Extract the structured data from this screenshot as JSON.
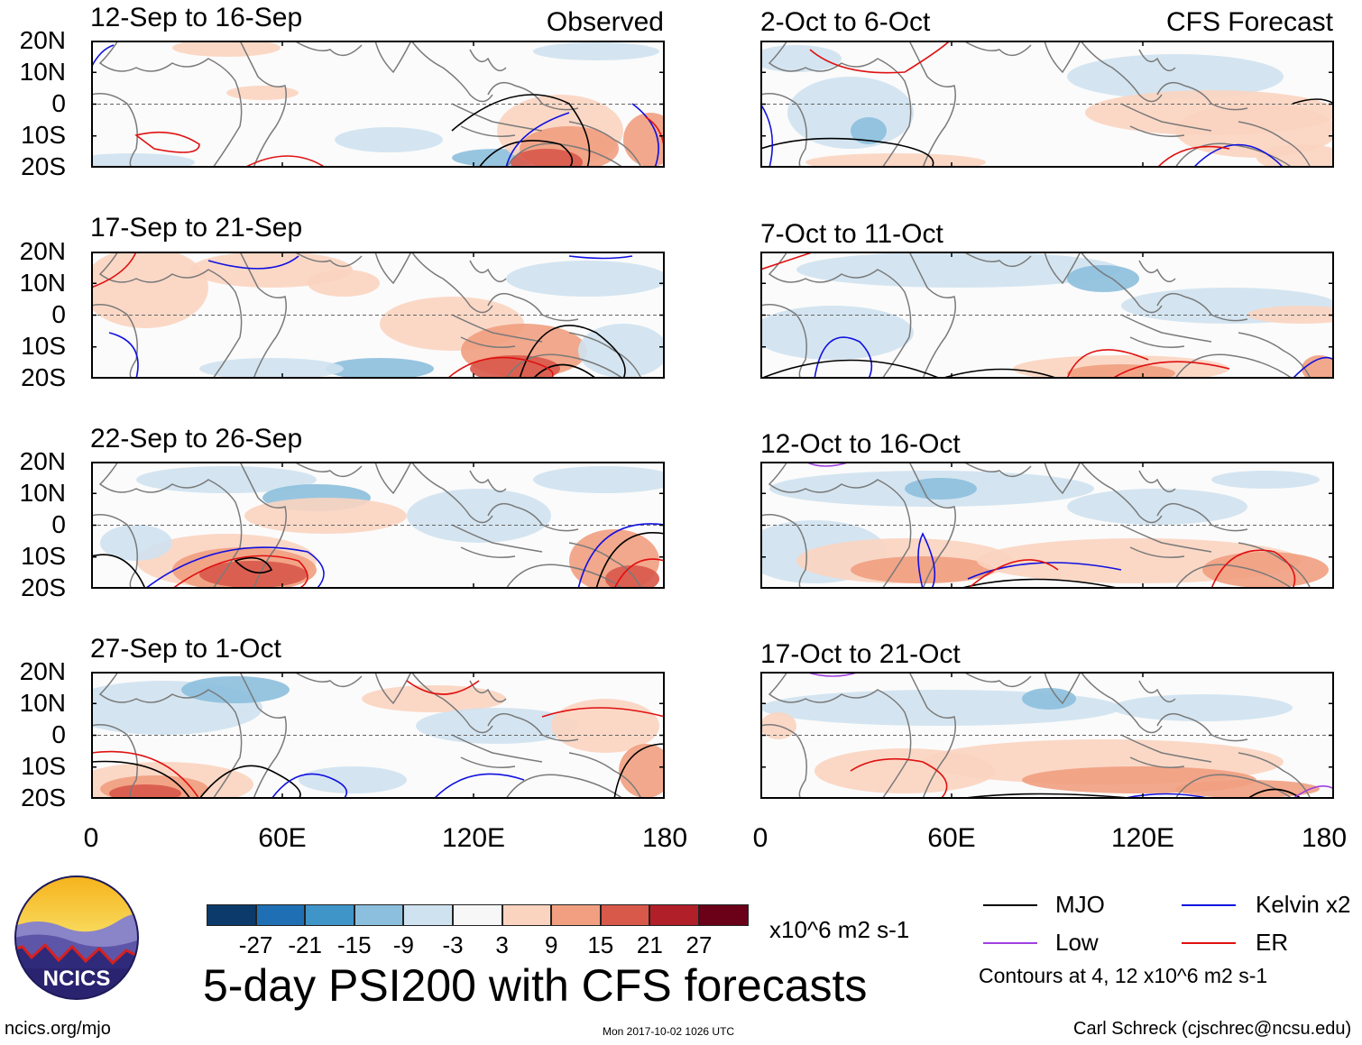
{
  "left_header": "Observed",
  "right_header": "CFS Forecast",
  "lat_labels": [
    "20N",
    "10N",
    "0",
    "10S",
    "20S"
  ],
  "lon_labels": [
    "0",
    "60E",
    "120E",
    "180"
  ],
  "panels": {
    "obs": [
      {
        "title": "12-Sep to 16-Sep"
      },
      {
        "title": "17-Sep to 21-Sep"
      },
      {
        "title": "22-Sep to 26-Sep"
      },
      {
        "title": "27-Sep to 1-Oct"
      }
    ],
    "fcst": [
      {
        "title": "2-Oct to 6-Oct"
      },
      {
        "title": "7-Oct to 11-Oct"
      },
      {
        "title": "12-Oct to 16-Oct"
      },
      {
        "title": "17-Oct to 21-Oct"
      }
    ]
  },
  "colorbar": {
    "colors": [
      "#0b3a6b",
      "#1f6fb4",
      "#3f94c8",
      "#8cbfdd",
      "#cfe2ef",
      "#f7f7f7",
      "#fbd4c0",
      "#f19f80",
      "#d8584a",
      "#b11f29",
      "#6b0019"
    ],
    "labels": [
      "-27",
      "-21",
      "-15",
      "-9",
      "-3",
      "3",
      "9",
      "15",
      "21",
      "27"
    ],
    "units": "x10^6 m2 s-1"
  },
  "title": "5-day PSI200 with CFS forecasts",
  "legend": {
    "items": [
      {
        "label": "MJO",
        "color": "#000000"
      },
      {
        "label": "Kelvin x2",
        "color": "#1010e0"
      },
      {
        "label": "Low",
        "color": "#a040e0"
      },
      {
        "label": "ER",
        "color": "#e01010"
      }
    ],
    "note": "Contours at 4, 12 x10^6 m2 s-1"
  },
  "logo_text": "NCICS",
  "footer": {
    "url": "ncics.org/mjo",
    "timestamp": "Mon 2017-10-02 1026 UTC",
    "author": "Carl Schreck (cjschrec@ncsu.edu)"
  }
}
